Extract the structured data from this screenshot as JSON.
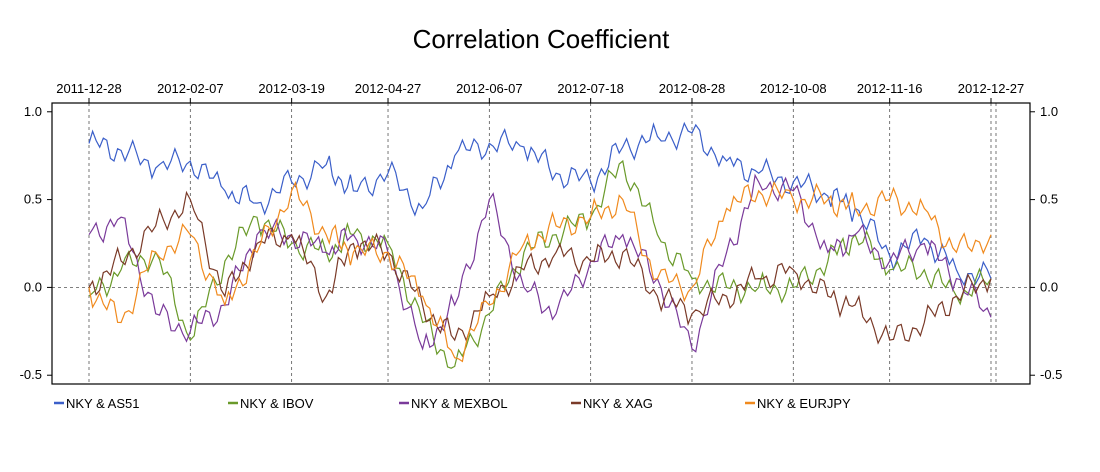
{
  "chart_data": {
    "type": "line",
    "title": "Correlation Coefficient",
    "xlabel": "",
    "ylabel": "",
    "ylim": [
      -0.55,
      1.05
    ],
    "y_ticks": [
      -0.5,
      0.0,
      0.5,
      1.0
    ],
    "y_tick_labels": [
      "-0.5",
      "0.0",
      "0.5",
      "1.0"
    ],
    "x_tick_labels": [
      "2011-12-28",
      "2012-02-07",
      "2012-03-19",
      "2012-04-27",
      "2012-06-07",
      "2012-07-18",
      "2012-08-28",
      "2012-10-08",
      "2012-11-16",
      "2012-12-27"
    ],
    "grid": "dashed lines at x ticks and y=0",
    "legend_position": "bottom",
    "series": [
      {
        "name": "NKY  &  AS51",
        "color": "#3b5fc9",
        "x": [
          "2011-12-28",
          "2012-01-10",
          "2012-01-24",
          "2012-02-07",
          "2012-02-21",
          "2012-03-05",
          "2012-03-19",
          "2012-04-02",
          "2012-04-13",
          "2012-04-27",
          "2012-05-11",
          "2012-05-24",
          "2012-06-07",
          "2012-06-21",
          "2012-07-04",
          "2012-07-18",
          "2012-07-31",
          "2012-08-14",
          "2012-08-28",
          "2012-09-11",
          "2012-09-24",
          "2012-10-08",
          "2012-10-22",
          "2012-11-02",
          "2012-11-16",
          "2012-11-30",
          "2012-12-13",
          "2012-12-27"
        ],
        "y": [
          0.82,
          0.78,
          0.68,
          0.72,
          0.55,
          0.48,
          0.6,
          0.7,
          0.55,
          0.65,
          0.45,
          0.75,
          0.82,
          0.8,
          0.65,
          0.6,
          0.8,
          0.86,
          0.88,
          0.72,
          0.65,
          0.6,
          0.52,
          0.45,
          0.18,
          0.28,
          0.1,
          0.05
        ]
      },
      {
        "name": "NKY  &  IBOV",
        "color": "#6a9a2a",
        "x": [
          "2011-12-28",
          "2012-01-10",
          "2012-01-24",
          "2012-02-07",
          "2012-02-21",
          "2012-03-05",
          "2012-03-19",
          "2012-04-02",
          "2012-04-13",
          "2012-04-27",
          "2012-05-11",
          "2012-05-24",
          "2012-06-07",
          "2012-06-21",
          "2012-07-04",
          "2012-07-18",
          "2012-07-31",
          "2012-08-14",
          "2012-08-28",
          "2012-09-11",
          "2012-09-24",
          "2012-10-08",
          "2012-10-22",
          "2012-11-02",
          "2012-11-16",
          "2012-11-30",
          "2012-12-13",
          "2012-12-27"
        ],
        "y": [
          -0.05,
          0.1,
          0.2,
          -0.3,
          0.15,
          0.4,
          0.25,
          0.2,
          0.3,
          0.25,
          -0.2,
          -0.45,
          -0.15,
          0.2,
          0.3,
          0.4,
          0.72,
          0.3,
          0.05,
          0.0,
          0.0,
          0.0,
          0.15,
          0.3,
          0.1,
          0.1,
          -0.05,
          0.05
        ]
      },
      {
        "name": "NKY  &  MEXBOL",
        "color": "#7a3a9a",
        "x": [
          "2011-12-28",
          "2012-01-10",
          "2012-01-24",
          "2012-02-07",
          "2012-02-21",
          "2012-03-05",
          "2012-03-19",
          "2012-04-02",
          "2012-04-13",
          "2012-04-27",
          "2012-05-11",
          "2012-05-24",
          "2012-06-07",
          "2012-06-21",
          "2012-07-04",
          "2012-07-18",
          "2012-07-31",
          "2012-08-14",
          "2012-08-28",
          "2012-09-11",
          "2012-09-24",
          "2012-10-08",
          "2012-10-22",
          "2012-11-02",
          "2012-11-16",
          "2012-11-30",
          "2012-12-13",
          "2012-12-27"
        ],
        "y": [
          0.3,
          0.4,
          -0.15,
          -0.25,
          -0.1,
          0.3,
          0.3,
          0.2,
          0.3,
          0.2,
          -0.35,
          -0.1,
          0.5,
          0.0,
          -0.15,
          0.15,
          0.3,
          0.05,
          -0.35,
          0.2,
          0.6,
          0.55,
          0.2,
          0.3,
          0.15,
          0.25,
          0.05,
          -0.17
        ]
      },
      {
        "name": "NKY  &  XAG",
        "color": "#7a3a28",
        "x": [
          "2011-12-28",
          "2012-01-10",
          "2012-01-24",
          "2012-02-07",
          "2012-02-21",
          "2012-03-05",
          "2012-03-19",
          "2012-04-02",
          "2012-04-13",
          "2012-04-27",
          "2012-05-11",
          "2012-05-24",
          "2012-06-07",
          "2012-06-21",
          "2012-07-04",
          "2012-07-18",
          "2012-07-31",
          "2012-08-14",
          "2012-08-28",
          "2012-09-11",
          "2012-09-24",
          "2012-10-08",
          "2012-10-22",
          "2012-11-02",
          "2012-11-16",
          "2012-11-30",
          "2012-12-13",
          "2012-12-27"
        ],
        "y": [
          0.0,
          0.15,
          0.35,
          0.5,
          -0.05,
          0.25,
          0.3,
          -0.05,
          0.25,
          0.2,
          -0.1,
          -0.3,
          -0.05,
          0.1,
          0.2,
          0.15,
          0.2,
          -0.05,
          -0.15,
          -0.05,
          0.05,
          0.1,
          -0.05,
          -0.1,
          -0.3,
          -0.2,
          -0.05,
          0.05
        ]
      },
      {
        "name": "NKY  &  EURJPY",
        "color": "#f08a1e",
        "x": [
          "2011-12-28",
          "2012-01-10",
          "2012-01-24",
          "2012-02-07",
          "2012-02-21",
          "2012-03-05",
          "2012-03-19",
          "2012-04-02",
          "2012-04-13",
          "2012-04-27",
          "2012-05-11",
          "2012-05-24",
          "2012-06-07",
          "2012-06-21",
          "2012-07-04",
          "2012-07-18",
          "2012-07-31",
          "2012-08-14",
          "2012-08-28",
          "2012-09-11",
          "2012-09-24",
          "2012-10-08",
          "2012-10-22",
          "2012-11-02",
          "2012-11-16",
          "2012-11-30",
          "2012-12-13",
          "2012-12-27"
        ],
        "y": [
          0.0,
          -0.2,
          0.2,
          0.3,
          -0.1,
          0.2,
          0.55,
          0.3,
          0.2,
          0.2,
          -0.05,
          -0.4,
          -0.1,
          0.25,
          0.35,
          0.4,
          0.5,
          0.05,
          0.0,
          0.45,
          0.55,
          0.5,
          0.5,
          0.45,
          0.5,
          0.45,
          0.2,
          0.3
        ]
      }
    ]
  }
}
